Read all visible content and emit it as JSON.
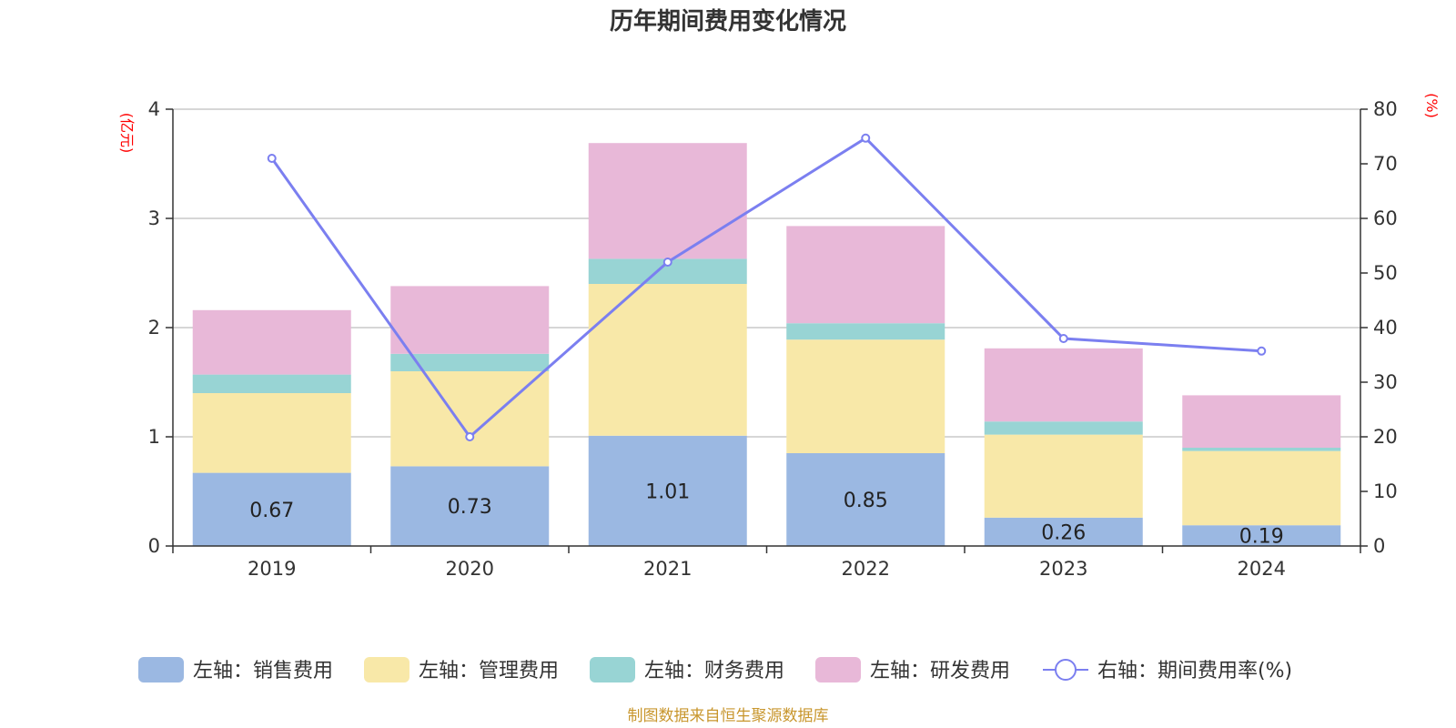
{
  "chart_data": {
    "type": "bar",
    "stacked": true,
    "title": "历年期间费用变化情况",
    "categories": [
      "2019",
      "2020",
      "2021",
      "2022",
      "2023",
      "2024"
    ],
    "left_axis": {
      "unit": "(亿元)",
      "range": [
        0,
        4
      ],
      "ticks": [
        "0",
        "1",
        "2",
        "3",
        "4"
      ]
    },
    "right_axis": {
      "unit": "(%)",
      "range": [
        0,
        80
      ],
      "ticks": [
        "0",
        "10",
        "20",
        "30",
        "40",
        "50",
        "60",
        "70",
        "80"
      ]
    },
    "series": [
      {
        "name": "左轴：销售费用",
        "kind": "bar",
        "color": "#9bb8e2",
        "values": [
          0.67,
          0.73,
          1.01,
          0.85,
          0.26,
          0.19
        ],
        "labels": [
          "0.67",
          "0.73",
          "1.01",
          "0.85",
          "0.26",
          "0.19"
        ]
      },
      {
        "name": "左轴：管理费用",
        "kind": "bar",
        "color": "#f8e8a8",
        "values": [
          0.73,
          0.87,
          1.39,
          1.04,
          0.76,
          0.68
        ]
      },
      {
        "name": "左轴：财务费用",
        "kind": "bar",
        "color": "#98d4d4",
        "values": [
          0.17,
          0.16,
          0.23,
          0.15,
          0.12,
          0.03
        ]
      },
      {
        "name": "左轴：研发费用",
        "kind": "bar",
        "color": "#e8b8d8",
        "values": [
          0.59,
          0.62,
          1.06,
          0.89,
          0.67,
          0.48
        ]
      },
      {
        "name": "右轴：期间费用率(%)",
        "kind": "line",
        "axis": "right",
        "color": "#7b7ff0",
        "values": [
          71.0,
          20.0,
          52.0,
          74.7,
          38.0,
          35.7
        ]
      }
    ],
    "grid": true,
    "legend_position": "bottom"
  },
  "source_text": "制图数据来自恒生聚源数据库"
}
